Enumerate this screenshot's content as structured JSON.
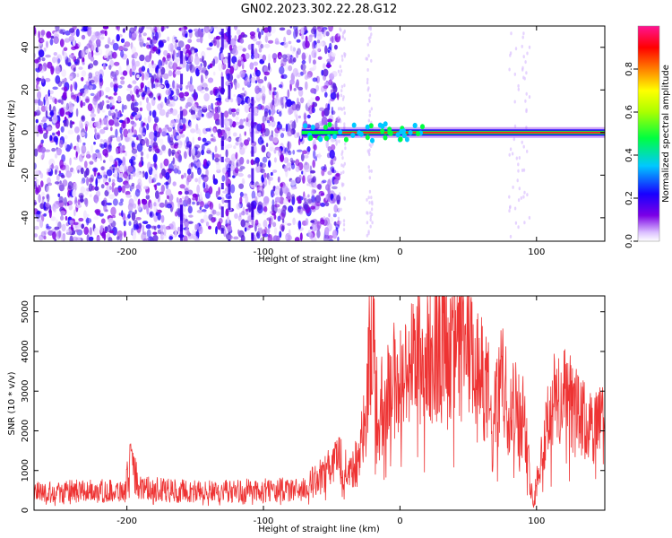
{
  "figure": {
    "title": "GN02.2023.302.22.28.G12"
  },
  "chart_data": [
    {
      "type": "heatmap",
      "xlabel": "Height of straight line (km)",
      "ylabel": "Frequency (Hz)",
      "xlim": [
        -268,
        150
      ],
      "ylim": [
        -51,
        50
      ],
      "xticks": [
        -200,
        -100,
        0,
        100
      ],
      "yticks": [
        -40,
        -20,
        0,
        20,
        40
      ],
      "noise_region_x": [
        -268,
        -45
      ],
      "signal_band": {
        "x_start": -72,
        "x_end": 150,
        "frequency_hz": 0
      },
      "colorbar": {
        "label": "Normalized spectral amplitude",
        "range": [
          0,
          1
        ],
        "ticks": [
          0.0,
          0.2,
          0.4,
          0.6,
          0.8
        ],
        "colormap": [
          "#ffffff",
          "#dcc2ff",
          "#7b00e6",
          "#1800ff",
          "#00c8ff",
          "#00ff40",
          "#aaff00",
          "#ffff00",
          "#ff8000",
          "#ff0000",
          "#ff1493"
        ]
      }
    },
    {
      "type": "line",
      "xlabel": "Height of straight line (km)",
      "ylabel": "SNR (10 * v/v)",
      "xlim": [
        -268,
        150
      ],
      "ylim": [
        0,
        5400
      ],
      "xticks": [
        -200,
        -100,
        0,
        100
      ],
      "yticks": [
        0,
        1000,
        2000,
        3000,
        4000,
        5000
      ],
      "color": "#ee3333",
      "series": [
        {
          "x": [
            -268,
            -250,
            -230,
            -210,
            -201,
            -198,
            -190,
            -170,
            -150,
            -130,
            -110,
            -100,
            -90,
            -75,
            -70,
            -60,
            -50,
            -45,
            -40,
            -30,
            -25,
            -23,
            -20,
            -18,
            -15,
            -10,
            -5,
            0,
            5,
            10,
            20,
            30,
            35,
            40,
            50,
            60,
            65,
            68,
            70,
            75,
            80,
            90,
            95,
            98,
            102,
            105,
            110,
            120,
            130,
            140,
            150
          ],
          "y": [
            450,
            470,
            480,
            490,
            500,
            1200,
            550,
            500,
            480,
            470,
            500,
            500,
            520,
            500,
            550,
            800,
            1100,
            1300,
            1000,
            1200,
            2500,
            3500,
            4700,
            3200,
            2500,
            3000,
            3300,
            3200,
            3400,
            3800,
            3900,
            3900,
            4400,
            4100,
            3900,
            3300,
            2900,
            1500,
            2700,
            3200,
            2700,
            2500,
            900,
            200,
            1200,
            1600,
            2700,
            2800,
            2400,
            2000,
            2200
          ]
        }
      ]
    }
  ]
}
